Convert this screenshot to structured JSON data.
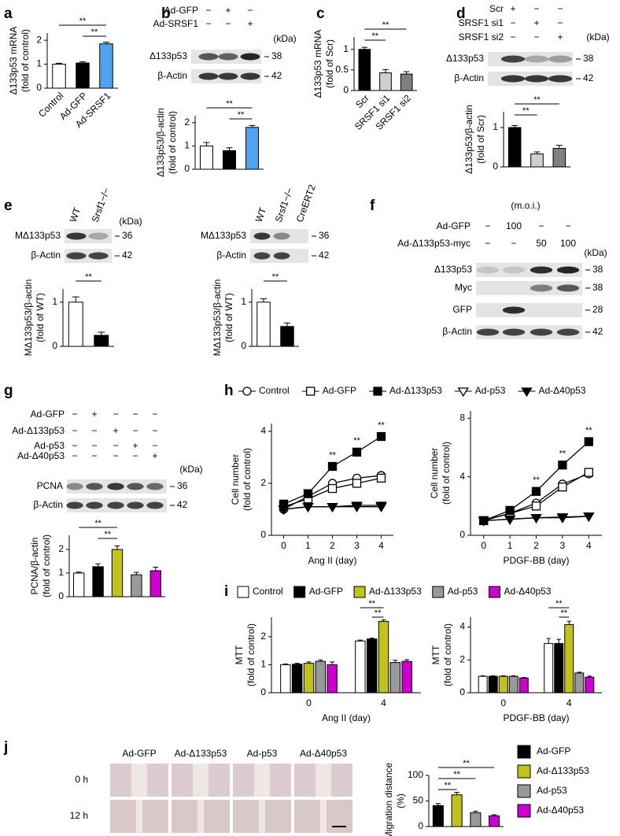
{
  "panel_labels": [
    "a",
    "b",
    "c",
    "d",
    "e",
    "f",
    "g",
    "h",
    "i",
    "j"
  ],
  "blots": [
    {
      "header": [
        {
          "label": "Ad-GFP",
          "marks": [
            "−",
            "+",
            "−"
          ]
        },
        {
          "label": "Ad-SRSF1",
          "marks": [
            "−",
            "−",
            "+"
          ]
        }
      ],
      "kda_title": "(kDa)",
      "rows": [
        {
          "label": "Δ133p53",
          "kda": 38
        },
        {
          "label": "β-Actin",
          "kda": 42
        }
      ]
    },
    {
      "header": [
        {
          "label": "Scr",
          "marks": [
            "+",
            "−",
            "−"
          ]
        },
        {
          "label": "SRSF1 si1",
          "marks": [
            "−",
            "+",
            "−"
          ]
        },
        {
          "label": "SRSF1 si2",
          "marks": [
            "−",
            "−",
            "+"
          ]
        }
      ],
      "kda_title": "(kDa)",
      "rows": [
        {
          "label": "Δ133p53",
          "kda": 38
        },
        {
          "label": "β-Actin",
          "kda": 42
        }
      ]
    },
    {
      "lanes": [
        "WT",
        "Srsf1−/−"
      ],
      "kda_title": "(kDa)",
      "rows": [
        {
          "label": "MΔ133p53",
          "kda": 36
        },
        {
          "label": "β-Actin",
          "kda": 42
        }
      ]
    },
    {
      "lanes": [
        "WT",
        "Srsf1−/−",
        "CreERT2"
      ],
      "rows": [
        {
          "label": "MΔ133p53",
          "kda": 36
        },
        {
          "label": "β-Actin",
          "kda": 42
        }
      ]
    },
    {
      "header": [
        {
          "label": "Ad-GFP",
          "marks": [
            "−",
            "100",
            "−",
            "−"
          ]
        },
        {
          "label": "Ad-Δ133p53-myc",
          "marks": [
            "−",
            "−",
            "50",
            "100"
          ]
        }
      ],
      "note": "(m.o.i.)",
      "kda_title": "(kDa)",
      "rows": [
        {
          "label": "Δ133p53",
          "kda": 38
        },
        {
          "label": "Myc",
          "kda": 38
        },
        {
          "label": "GFP",
          "kda": 28
        },
        {
          "label": "β-Actin",
          "kda": 42
        }
      ]
    },
    {
      "header": [
        {
          "label": "Ad-GFP",
          "marks": [
            "−",
            "+",
            "−",
            "−",
            "−"
          ]
        },
        {
          "label": "Ad-Δ133p53",
          "marks": [
            "−",
            "−",
            "+",
            "−",
            "−"
          ]
        },
        {
          "label": "Ad-p53",
          "marks": [
            "−",
            "−",
            "−",
            "+",
            "−"
          ]
        },
        {
          "label": "Ad-Δ40p53",
          "marks": [
            "−",
            "−",
            "−",
            "−",
            "+"
          ]
        }
      ],
      "kda_title": "(kDa)",
      "rows": [
        {
          "label": "PCNA",
          "kda": 36
        },
        {
          "label": "β-Actin",
          "kda": 42
        }
      ]
    }
  ],
  "migration": {
    "columns": [
      "Ad-GFP",
      "Ad-Δ133p53",
      "Ad-p53",
      "Ad-Δ40p53"
    ],
    "rows": [
      "0 h",
      "12 h"
    ]
  },
  "chart_data": [
    {
      "type": "bar",
      "ylabel": [
        "Δ133p53 mRNA",
        "(fold of control)"
      ],
      "categories": [
        "Control",
        "Ad-GFP",
        "Ad-SRSF1"
      ],
      "values": [
        1,
        1.05,
        1.85
      ],
      "errors": [
        0.04,
        0.05,
        0.07
      ],
      "colors": [
        "#ffffff",
        "#000000",
        "#4fa3ef"
      ],
      "ylim": [
        0,
        2.3
      ],
      "yticks": [
        0,
        1,
        2
      ],
      "significance": [
        {
          "bars": [
            0,
            2
          ],
          "label": "**"
        },
        {
          "bars": [
            1,
            2
          ],
          "label": "**"
        }
      ]
    },
    {
      "type": "bar",
      "ylabel": [
        "Δ133p53/β-actin",
        "(fold of control)"
      ],
      "categories": [
        null,
        null,
        null
      ],
      "values": [
        1,
        0.8,
        1.8
      ],
      "errors": [
        0.15,
        0.12,
        0.08
      ],
      "colors": [
        "#ffffff",
        "#000000",
        "#4fa3ef"
      ],
      "ylim": [
        0,
        2.3
      ],
      "yticks": [
        0,
        1,
        2
      ],
      "significance": [
        {
          "bars": [
            0,
            2
          ],
          "label": "**"
        },
        {
          "bars": [
            1,
            2
          ],
          "label": "**"
        }
      ]
    },
    {
      "type": "bar",
      "ylabel": [
        "Δ133p53 mRNA",
        "(fold of Scr)"
      ],
      "categories": [
        "Scr",
        "SRSF1 si1",
        "SRSF1 si2"
      ],
      "values": [
        1,
        0.43,
        0.4
      ],
      "errors": [
        0.05,
        0.08,
        0.06
      ],
      "colors": [
        "#000000",
        "#d0d0d0",
        "#808080"
      ],
      "ylim": [
        0,
        1.3
      ],
      "yticks": [
        0,
        0.5,
        1
      ],
      "significance": [
        {
          "bars": [
            0,
            2
          ],
          "label": "**"
        },
        {
          "bars": [
            0,
            1
          ],
          "label": "**"
        }
      ]
    },
    {
      "type": "bar",
      "ylabel": [
        "Δ133p53/β-actin",
        "(fold of Scr)"
      ],
      "categories": [
        null,
        null,
        null
      ],
      "values": [
        1,
        0.33,
        0.47
      ],
      "errors": [
        0.05,
        0.05,
        0.08
      ],
      "colors": [
        "#000000",
        "#d0d0d0",
        "#808080"
      ],
      "ylim": [
        0,
        1.4
      ],
      "yticks": [
        0,
        1
      ],
      "significance": [
        {
          "bars": [
            0,
            2
          ],
          "label": "**"
        },
        {
          "bars": [
            0,
            1
          ],
          "label": "**"
        }
      ]
    },
    {
      "type": "bar",
      "ylabel": [
        "MΔ133p53/β-actin",
        "(fold of WT)"
      ],
      "categories": [
        null,
        null
      ],
      "values": [
        1,
        0.25
      ],
      "errors": [
        0.12,
        0.07
      ],
      "colors": [
        "#ffffff",
        "#000000"
      ],
      "ylim": [
        0,
        1.3
      ],
      "yticks": [
        0,
        1
      ],
      "significance": [
        {
          "bars": [
            0,
            1
          ],
          "label": "**"
        }
      ]
    },
    {
      "type": "bar",
      "ylabel": [
        "MΔ133p53/β-actin",
        "(fold of WT)"
      ],
      "categories": [
        null,
        null
      ],
      "values": [
        1,
        0.45
      ],
      "errors": [
        0.08,
        0.08
      ],
      "colors": [
        "#ffffff",
        "#000000"
      ],
      "ylim": [
        0,
        1.3
      ],
      "yticks": [
        0,
        1
      ],
      "significance": [
        {
          "bars": [
            0,
            1
          ],
          "label": "**"
        }
      ]
    },
    {
      "type": "bar",
      "ylabel": [
        "PCNA/β-actin",
        "(fold of control)"
      ],
      "categories": [
        null,
        null,
        null,
        null,
        null
      ],
      "values": [
        1,
        1.27,
        2.0,
        0.93,
        1.1
      ],
      "errors": [
        0.04,
        0.12,
        0.15,
        0.1,
        0.15
      ],
      "colors": [
        "#ffffff",
        "#000000",
        "#c2c21c",
        "#999999",
        "#cc00cc"
      ],
      "ylim": [
        0,
        2.6
      ],
      "yticks": [
        0,
        1,
        2
      ],
      "significance": [
        {
          "bars": [
            0,
            2
          ],
          "label": "**"
        },
        {
          "bars": [
            1,
            2
          ],
          "label": "**"
        }
      ]
    },
    {
      "type": "line",
      "legend": "top",
      "xlabel": "Ang II (day)",
      "ylabel": [
        "Cell number",
        "(fold of control)"
      ],
      "x": [
        0,
        1,
        2,
        3,
        4
      ],
      "xlim": [
        -0.5,
        4.5
      ],
      "xticks": [
        0,
        1,
        2,
        3,
        4
      ],
      "ylim": [
        0,
        4.3
      ],
      "yticks": [
        0,
        2,
        4
      ],
      "series": [
        {
          "name": "Control",
          "marker": "circle-open",
          "values": [
            1,
            1.5,
            2.0,
            2.2,
            2.3
          ]
        },
        {
          "name": "Ad-GFP",
          "marker": "square-open",
          "values": [
            1.1,
            1.4,
            1.8,
            2.0,
            2.2
          ]
        },
        {
          "name": "Ad-Δ133p53",
          "marker": "square-filled",
          "values": [
            1.2,
            1.6,
            2.65,
            3.2,
            3.8
          ]
        },
        {
          "name": "Ad-p53",
          "marker": "triangle-open",
          "values": [
            1,
            1.1,
            1.1,
            1.1,
            1.1
          ]
        },
        {
          "name": "Ad-Δ40p53",
          "marker": "triangle-filled",
          "values": [
            1,
            1.1,
            1.1,
            1.15,
            1.15
          ]
        }
      ],
      "annotations": [
        {
          "x": 2,
          "label": "**"
        },
        {
          "x": 3,
          "label": "**"
        },
        {
          "x": 4,
          "label": "**"
        }
      ]
    },
    {
      "type": "line",
      "xlabel": "PDGF-BB (day)",
      "ylabel": [
        "Cell number",
        "(fold of control)"
      ],
      "x": [
        0,
        1,
        2,
        3,
        4
      ],
      "xlim": [
        -0.5,
        4.5
      ],
      "xticks": [
        0,
        1,
        2,
        3,
        4
      ],
      "ylim": [
        0,
        8.5
      ],
      "yticks": [
        0,
        4,
        8
      ],
      "series": [
        {
          "marker": "circle-open",
          "values": [
            1,
            1.5,
            2.2,
            3.5,
            4.2
          ]
        },
        {
          "marker": "square-open",
          "values": [
            1,
            1.5,
            2.0,
            3.3,
            4.3
          ]
        },
        {
          "marker": "square-filled",
          "values": [
            1,
            1.7,
            3.0,
            4.8,
            6.4
          ]
        },
        {
          "marker": "triangle-open",
          "values": [
            1,
            1.1,
            1.2,
            1.2,
            1.3
          ]
        },
        {
          "marker": "triangle-filled",
          "values": [
            1,
            1.1,
            1.2,
            1.25,
            1.3
          ]
        }
      ],
      "annotations": [
        {
          "x": 2,
          "label": "**"
        },
        {
          "x": 3,
          "label": "**"
        },
        {
          "x": 4,
          "label": "**"
        }
      ]
    },
    {
      "type": "grouped_bar",
      "legend": "top",
      "xlabel": "Ang II (day)",
      "ylabel": [
        "MTT",
        "(fold of control)"
      ],
      "categories": [
        "0",
        "4"
      ],
      "ylim": [
        0,
        2.7
      ],
      "yticks": [
        0,
        1,
        2
      ],
      "series": [
        {
          "name": "Control",
          "color": "#ffffff",
          "values": [
            1,
            1.85
          ],
          "errors": [
            0.03,
            0.03
          ]
        },
        {
          "name": "Ad-GFP",
          "color": "#000000",
          "values": [
            1.02,
            1.92
          ],
          "errors": [
            0.03,
            0.03
          ]
        },
        {
          "name": "Ad-Δ133p53",
          "color": "#c2c21c",
          "values": [
            1.05,
            2.55
          ],
          "errors": [
            0.05,
            0.06
          ]
        },
        {
          "name": "Ad-p53",
          "color": "#999999",
          "values": [
            1.12,
            1.08
          ],
          "errors": [
            0.05,
            0.08
          ]
        },
        {
          "name": "Ad-Δ40p53",
          "color": "#cc00cc",
          "values": [
            1.0,
            1.12
          ],
          "errors": [
            0.1,
            0.06
          ]
        }
      ],
      "significance": [
        {
          "category": 1,
          "bars": [
            0,
            2
          ],
          "label": "**"
        },
        {
          "category": 1,
          "bars": [
            1,
            2
          ],
          "label": "**"
        }
      ]
    },
    {
      "type": "grouped_bar",
      "xlabel": "PDGF-BB (day)",
      "ylabel": [
        "MTT",
        "(fold of control)"
      ],
      "categories": [
        "0",
        "4"
      ],
      "ylim": [
        0,
        4.6
      ],
      "yticks": [
        0,
        2,
        4
      ],
      "series": [
        {
          "color": "#ffffff",
          "values": [
            1,
            3.0
          ],
          "errors": [
            0.03,
            0.3
          ]
        },
        {
          "color": "#000000",
          "values": [
            1,
            3.0
          ],
          "errors": [
            0.03,
            0.25
          ]
        },
        {
          "color": "#c2c21c",
          "values": [
            1,
            4.15
          ],
          "errors": [
            0.03,
            0.2
          ]
        },
        {
          "color": "#999999",
          "values": [
            1,
            1.2
          ],
          "errors": [
            0.03,
            0.05
          ]
        },
        {
          "color": "#cc00cc",
          "values": [
            0.9,
            0.95
          ],
          "errors": [
            0.03,
            0.06
          ]
        }
      ],
      "significance": [
        {
          "category": 1,
          "bars": [
            0,
            2
          ],
          "label": "**"
        },
        {
          "category": 1,
          "bars": [
            1,
            2
          ],
          "label": "**"
        }
      ]
    },
    {
      "type": "bar",
      "legend": "right",
      "ylabel": [
        "Migration distance",
        "(%)"
      ],
      "categories": [
        "Ad-GFP",
        "Ad-Δ133p53",
        "Ad-p53",
        "Ad-Δ40p53"
      ],
      "values": [
        41,
        62,
        27,
        21
      ],
      "errors": [
        4,
        5,
        3,
        2
      ],
      "colors": [
        "#000000",
        "#c2c21c",
        "#999999",
        "#cc00cc"
      ],
      "ylim": [
        0,
        100
      ],
      "yticks": [
        0,
        50,
        100
      ],
      "significance": [
        {
          "bars": [
            0,
            3
          ],
          "label": "**"
        },
        {
          "bars": [
            0,
            2
          ],
          "label": "**"
        },
        {
          "bars": [
            0,
            1
          ],
          "label": "**"
        }
      ]
    }
  ]
}
